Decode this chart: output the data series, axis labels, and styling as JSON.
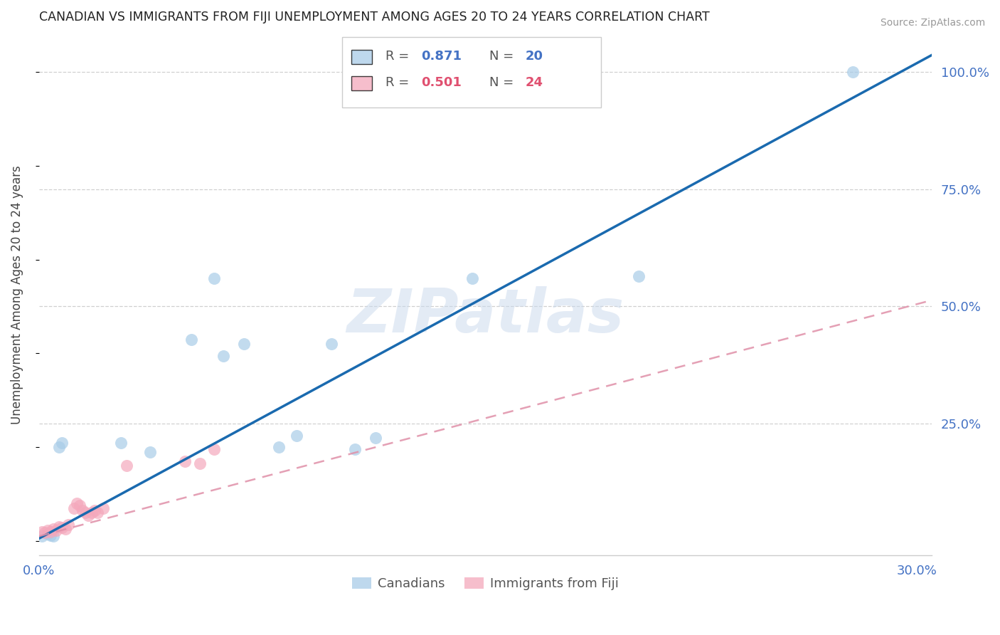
{
  "title": "CANADIAN VS IMMIGRANTS FROM FIJI UNEMPLOYMENT AMONG AGES 20 TO 24 YEARS CORRELATION CHART",
  "source": "Source: ZipAtlas.com",
  "ylabel": "Unemployment Among Ages 20 to 24 years",
  "xlim": [
    0.0,
    0.305
  ],
  "ylim": [
    -0.03,
    1.08
  ],
  "x_ticks": [
    0.0,
    0.05,
    0.1,
    0.15,
    0.2,
    0.25,
    0.3
  ],
  "x_tick_labels": [
    "0.0%",
    "",
    "",
    "",
    "",
    "",
    "30.0%"
  ],
  "y_ticks_right": [
    0.0,
    0.25,
    0.5,
    0.75,
    1.0
  ],
  "y_tick_labels_right": [
    "",
    "25.0%",
    "50.0%",
    "75.0%",
    "100.0%"
  ],
  "canadian_color": "#a8cce8",
  "fiji_color": "#f4a8bc",
  "canadian_R": 0.871,
  "canadian_N": 20,
  "fiji_R": 0.501,
  "fiji_N": 24,
  "canadians_x": [
    0.001,
    0.003,
    0.004,
    0.005,
    0.007,
    0.008,
    0.028,
    0.038,
    0.052,
    0.06,
    0.063,
    0.07,
    0.082,
    0.088,
    0.1,
    0.108,
    0.115,
    0.148,
    0.205,
    0.278
  ],
  "canadians_y": [
    0.01,
    0.015,
    0.012,
    0.01,
    0.2,
    0.21,
    0.21,
    0.19,
    0.43,
    0.56,
    0.395,
    0.42,
    0.2,
    0.225,
    0.42,
    0.195,
    0.22,
    0.56,
    0.565,
    1.0
  ],
  "fiji_x": [
    0.001,
    0.002,
    0.003,
    0.004,
    0.005,
    0.006,
    0.007,
    0.008,
    0.009,
    0.01,
    0.012,
    0.013,
    0.014,
    0.015,
    0.016,
    0.017,
    0.018,
    0.019,
    0.02,
    0.022,
    0.03,
    0.05,
    0.055,
    0.06
  ],
  "fiji_y": [
    0.02,
    0.018,
    0.022,
    0.02,
    0.025,
    0.022,
    0.03,
    0.028,
    0.025,
    0.035,
    0.07,
    0.08,
    0.075,
    0.065,
    0.06,
    0.055,
    0.06,
    0.065,
    0.06,
    0.07,
    0.16,
    0.17,
    0.165,
    0.195
  ],
  "line_color_canadian": "#1a6aaf",
  "line_color_fiji": "#e090a8",
  "grid_color": "#d0d0d0",
  "background_color": "#ffffff",
  "watermark": "ZIPatlas",
  "watermark_color": "#c8d8ec",
  "reg_canadian_slope": 3.38,
  "reg_canadian_intercept": 0.005,
  "reg_fiji_slope": 1.65,
  "reg_fiji_intercept": 0.01
}
